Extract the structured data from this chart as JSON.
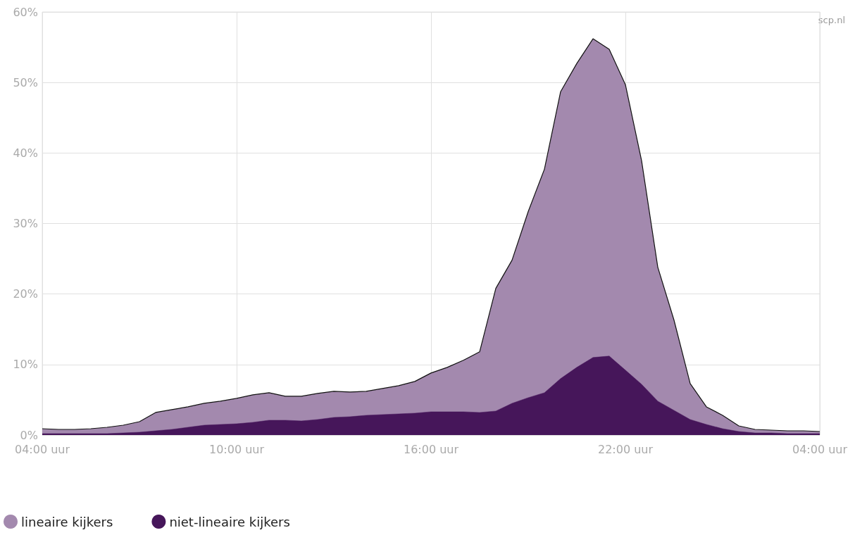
{
  "chart_data": {
    "type": "area",
    "categories": [
      "04:00 uur",
      null,
      null,
      null,
      null,
      null,
      null,
      null,
      null,
      null,
      null,
      null,
      "10:00 uur",
      null,
      null,
      null,
      null,
      null,
      null,
      null,
      null,
      null,
      null,
      null,
      "16:00 uur",
      null,
      null,
      null,
      null,
      null,
      null,
      null,
      null,
      null,
      null,
      null,
      "22:00 uur",
      null,
      null,
      null,
      null,
      null,
      null,
      null,
      null,
      null,
      null,
      null,
      "04:00 uur"
    ],
    "ylim": [
      0,
      60
    ],
    "yticks": [
      {
        "value": 0,
        "label": "0%"
      },
      {
        "value": 10,
        "label": "10%"
      },
      {
        "value": 20,
        "label": "20%"
      },
      {
        "value": 30,
        "label": "30%"
      },
      {
        "value": 40,
        "label": "40%"
      },
      {
        "value": 50,
        "label": "50%"
      },
      {
        "value": 60,
        "label": "60%"
      }
    ],
    "grid": true,
    "legend": "bottom left",
    "marker": "none",
    "annotations": [
      "scp.nl"
    ],
    "series": [
      {
        "name": "lineaire kijkers",
        "color": "#a389ae",
        "values": [
          0.9,
          0.8,
          0.8,
          0.9,
          1.1,
          1.4,
          1.9,
          3.2,
          3.6,
          4.0,
          4.5,
          4.8,
          5.2,
          5.7,
          6.0,
          5.5,
          5.5,
          5.9,
          6.2,
          6.1,
          6.2,
          6.6,
          7.0,
          7.6,
          8.8,
          9.6,
          10.6,
          11.8,
          20.8,
          24.8,
          31.7,
          37.7,
          48.7,
          52.7,
          56.2,
          54.7,
          49.7,
          38.9,
          23.8,
          16.3,
          7.3,
          4.0,
          2.8,
          1.3,
          0.8,
          0.7,
          0.6,
          0.6,
          0.5
        ]
      },
      {
        "name": "niet-lineaire kijkers",
        "color": "#46165a",
        "values": [
          0.2,
          0.2,
          0.2,
          0.2,
          0.2,
          0.3,
          0.4,
          0.6,
          0.8,
          1.1,
          1.4,
          1.5,
          1.6,
          1.8,
          2.1,
          2.1,
          2.0,
          2.2,
          2.5,
          2.6,
          2.8,
          2.9,
          3.0,
          3.1,
          3.3,
          3.3,
          3.3,
          3.2,
          3.4,
          4.5,
          5.3,
          6.0,
          8.0,
          9.6,
          11.0,
          11.2,
          9.2,
          7.2,
          4.8,
          3.5,
          2.2,
          1.5,
          0.9,
          0.5,
          0.3,
          0.3,
          0.2,
          0.2,
          0.2
        ]
      }
    ]
  }
}
